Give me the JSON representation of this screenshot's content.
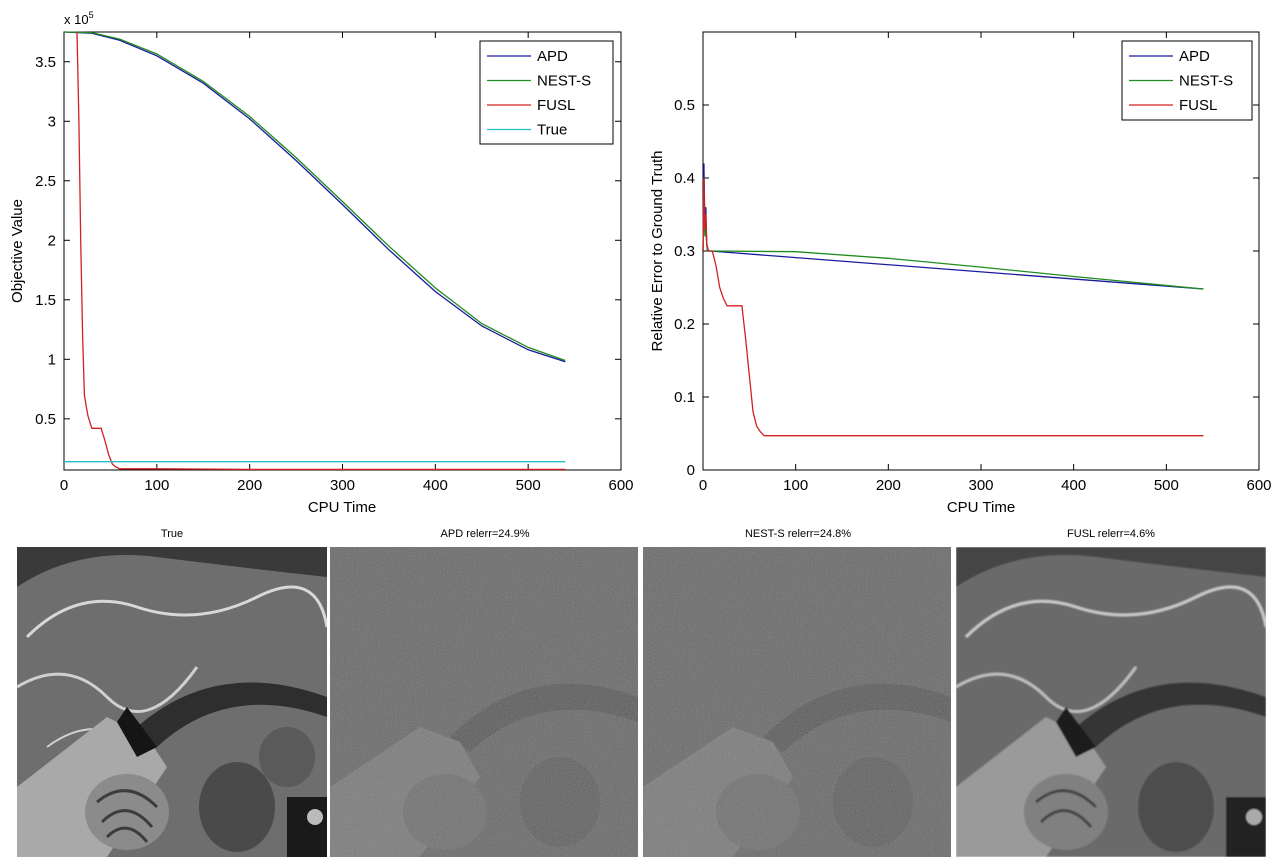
{
  "colors": {
    "APD": "#1a1aa0",
    "NEST-S": "#1e8c1e",
    "FUSL": "#d42020",
    "True": "#20c0c8"
  },
  "chart_data": [
    {
      "type": "line",
      "title": "",
      "xlabel": "CPU Time",
      "ylabel": "Objective Value",
      "y_exponent_label": "x 10",
      "y_exponent_power": "5",
      "xlim": [
        0,
        600
      ],
      "ylim": [
        0.07,
        3.75
      ],
      "xticks": [
        "0",
        "100",
        "200",
        "300",
        "400",
        "500",
        "600"
      ],
      "yticks": [
        "0.5",
        "1",
        "1.5",
        "2",
        "2.5",
        "3",
        "3.5"
      ],
      "grid": false,
      "legend_position": "top-right",
      "series": [
        {
          "name": "APD",
          "x": [
            0,
            30,
            60,
            100,
            150,
            200,
            250,
            300,
            350,
            400,
            450,
            500,
            540
          ],
          "y": [
            3.75,
            3.74,
            3.68,
            3.55,
            3.32,
            3.02,
            2.67,
            2.3,
            1.92,
            1.57,
            1.28,
            1.08,
            0.98
          ]
        },
        {
          "name": "NEST-S",
          "x": [
            0,
            30,
            60,
            100,
            150,
            200,
            250,
            300,
            350,
            400,
            450,
            500,
            540
          ],
          "y": [
            3.75,
            3.745,
            3.69,
            3.565,
            3.335,
            3.04,
            2.695,
            2.325,
            1.95,
            1.6,
            1.3,
            1.1,
            0.99
          ]
        },
        {
          "name": "FUSL",
          "x": [
            14,
            16,
            18,
            20,
            22,
            24,
            26,
            30,
            40,
            44,
            48,
            52,
            55,
            60,
            100,
            200,
            300,
            400,
            540
          ],
          "y": [
            3.75,
            3.0,
            2.0,
            1.2,
            0.7,
            0.6,
            0.52,
            0.42,
            0.42,
            0.32,
            0.2,
            0.12,
            0.1,
            0.08,
            0.08,
            0.075,
            0.075,
            0.075,
            0.075
          ]
        },
        {
          "name": "True",
          "x": [
            0,
            540
          ],
          "y": [
            0.14,
            0.14
          ]
        }
      ]
    },
    {
      "type": "line",
      "title": "",
      "xlabel": "CPU Time",
      "ylabel": "Relative Error to Ground Truth",
      "xlim": [
        0,
        600
      ],
      "ylim": [
        0,
        0.6
      ],
      "xticks": [
        "0",
        "100",
        "200",
        "300",
        "400",
        "500",
        "600"
      ],
      "yticks": [
        "0",
        "0.1",
        "0.2",
        "0.3",
        "0.4",
        "0.5"
      ],
      "grid": false,
      "legend_position": "top-right",
      "series": [
        {
          "name": "APD",
          "x": [
            0,
            1,
            2,
            3,
            4,
            5,
            8,
            540
          ],
          "y": [
            0.3,
            0.42,
            0.33,
            0.36,
            0.31,
            0.3,
            0.3,
            0.248
          ]
        },
        {
          "name": "NEST-S",
          "x": [
            0,
            1,
            2,
            3,
            4,
            5,
            8,
            100,
            200,
            300,
            400,
            540
          ],
          "y": [
            0.3,
            0.36,
            0.32,
            0.34,
            0.31,
            0.3,
            0.3,
            0.299,
            0.29,
            0.278,
            0.265,
            0.248
          ]
        },
        {
          "name": "FUSL",
          "x": [
            0,
            1,
            2,
            3,
            4,
            6,
            8,
            10,
            14,
            18,
            22,
            26,
            30,
            42,
            46,
            50,
            54,
            58,
            62,
            66,
            100,
            540
          ],
          "y": [
            0.3,
            0.4,
            0.33,
            0.35,
            0.31,
            0.3,
            0.3,
            0.3,
            0.28,
            0.25,
            0.235,
            0.225,
            0.225,
            0.225,
            0.18,
            0.13,
            0.08,
            0.06,
            0.052,
            0.047,
            0.047,
            0.047
          ]
        }
      ]
    }
  ],
  "panels": [
    {
      "title": "True"
    },
    {
      "title": "APD relerr=24.9%"
    },
    {
      "title": "NEST-S relerr=24.8%"
    },
    {
      "title": "FUSL relerr=4.6%"
    }
  ]
}
